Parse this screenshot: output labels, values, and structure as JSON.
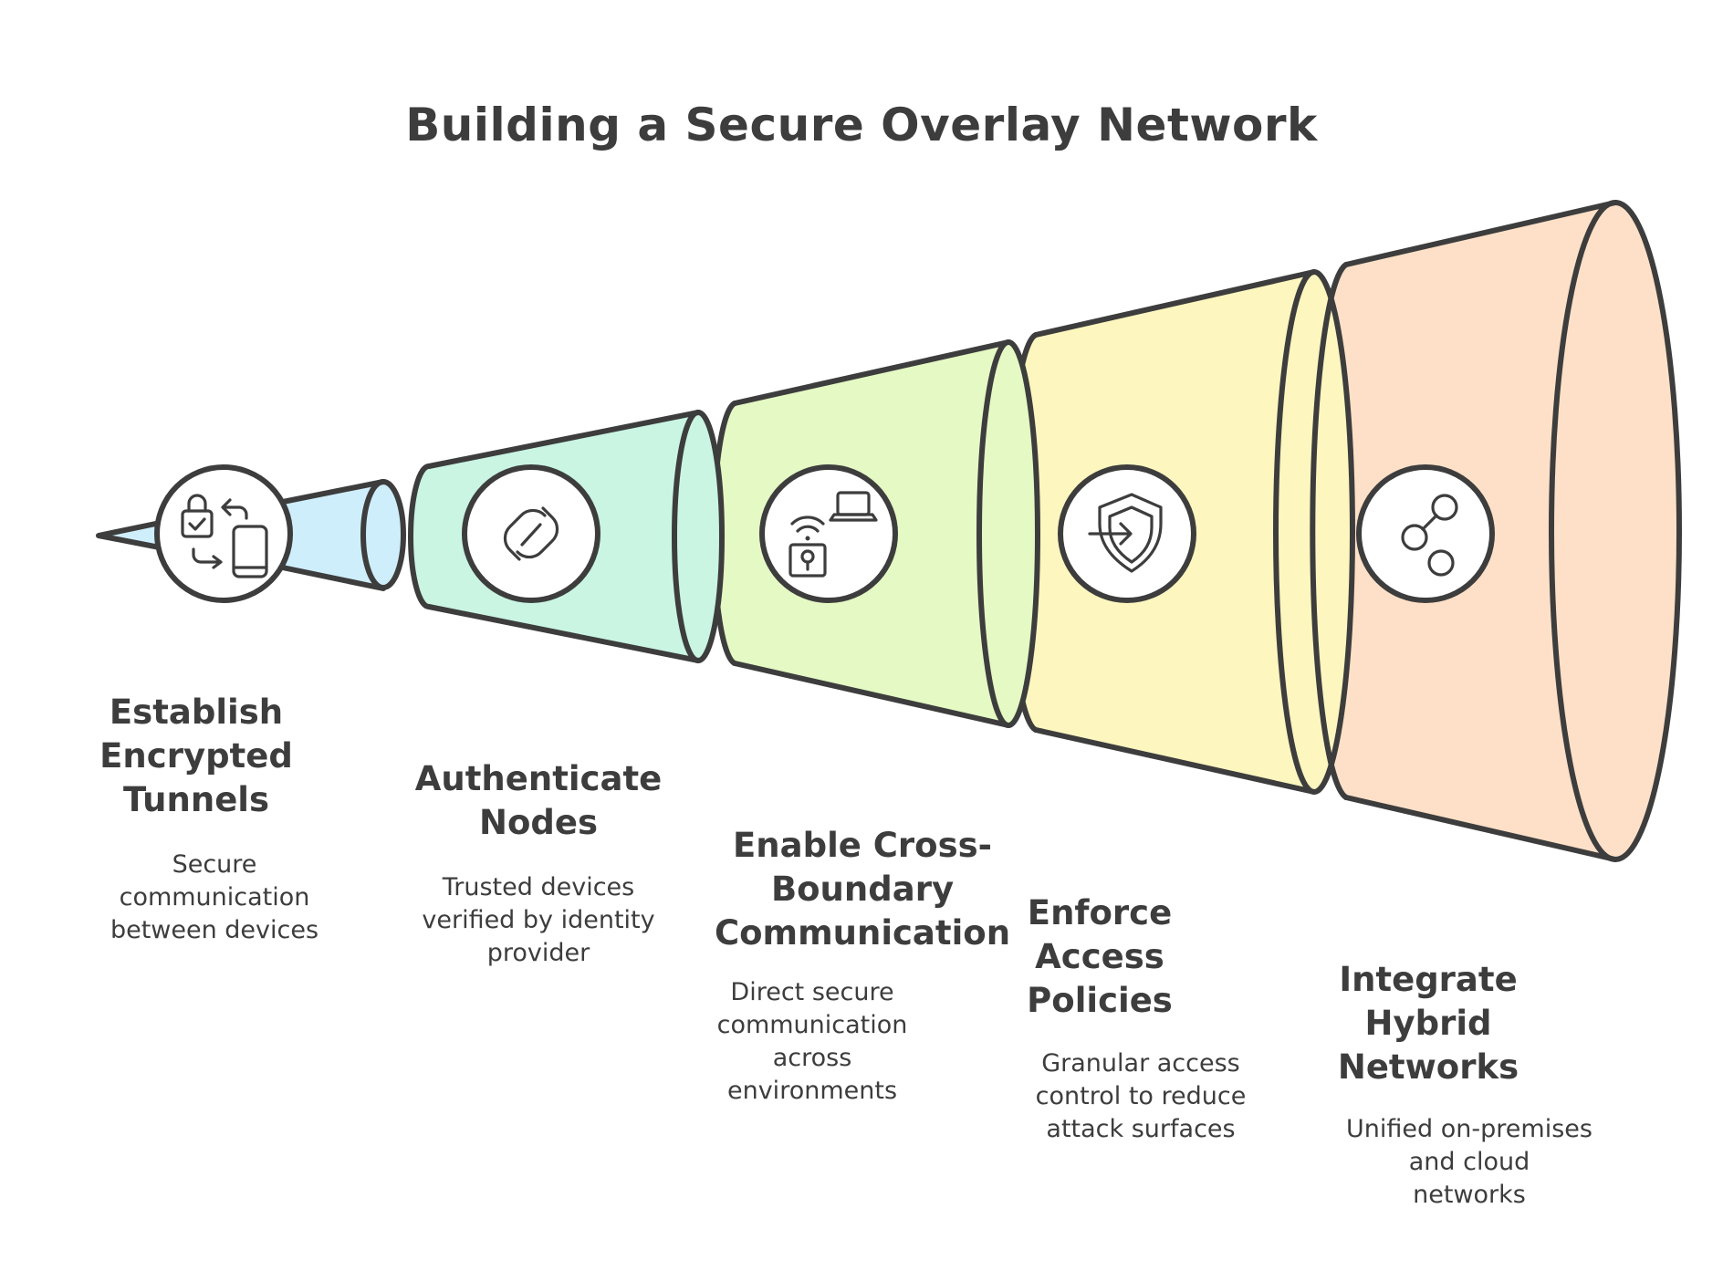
{
  "title": "Building a Secure Overlay Network",
  "colors": {
    "stroke": "#3d3d3d",
    "segment_1": "#cfeefc",
    "segment_2": "#c9f5e2",
    "segment_3": "#e4f9c4",
    "segment_4": "#fdf6bf",
    "segment_5": "#fde0c7"
  },
  "steps": [
    {
      "title": "Establish\nEncrypted\nTunnels",
      "description": "Secure\ncommunication\nbetween devices",
      "icon": "lock-devices-icon"
    },
    {
      "title": "Authenticate\nNodes",
      "description": "Trusted devices\nverified by identity\nprovider",
      "icon": "link-icon"
    },
    {
      "title": "Enable Cross-\nBoundary\nCommunication",
      "description": "Direct secure\ncommunication\nacross\nenvironments",
      "icon": "wifi-laptop-lock-icon"
    },
    {
      "title": "Enforce\nAccess\nPolicies",
      "description": "Granular access\ncontrol to reduce\nattack surfaces",
      "icon": "shield-enter-icon"
    },
    {
      "title": "Integrate\nHybrid\nNetworks",
      "description": "Unified on-premises\nand cloud\nnetworks",
      "icon": "network-nodes-icon"
    }
  ]
}
